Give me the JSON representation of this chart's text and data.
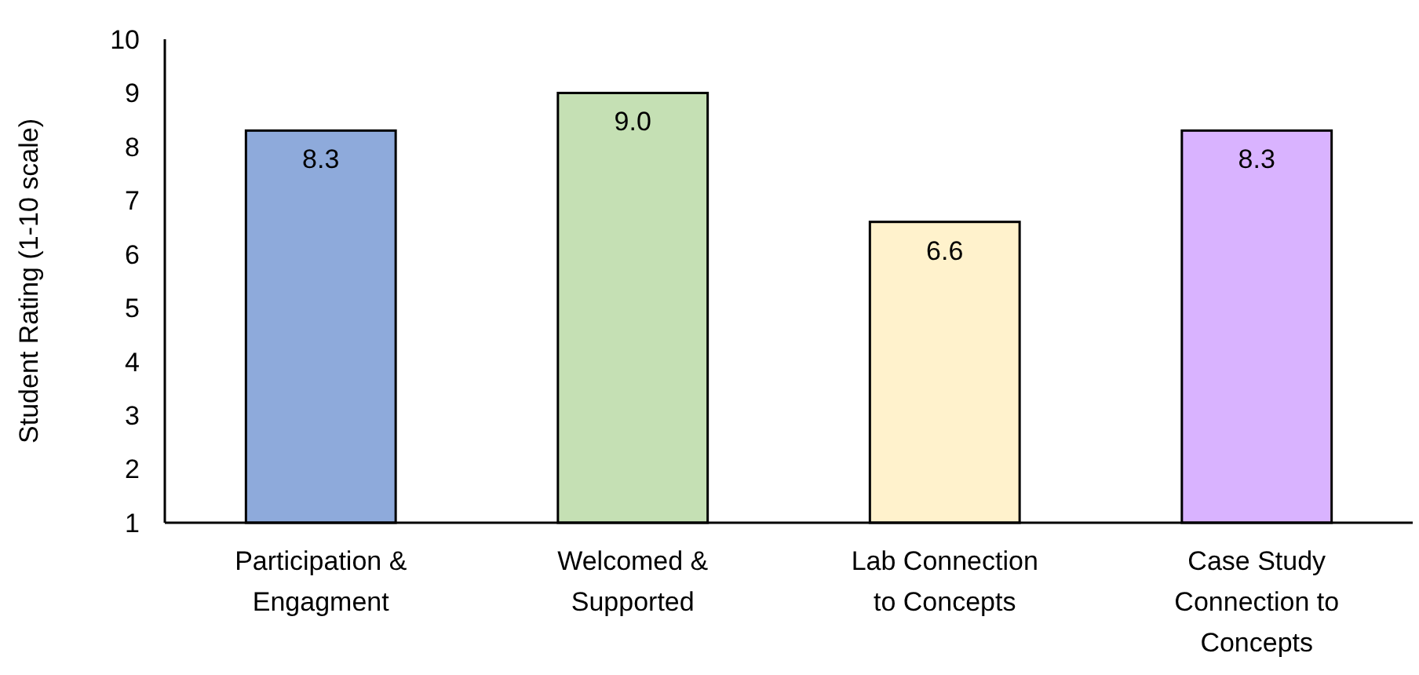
{
  "chart_data": {
    "type": "bar",
    "ylabel": "Student Rating (1-10 scale)",
    "categories": [
      "Participation & Engagment",
      "Welcomed & Supported",
      "Lab Connection to Concepts",
      "Case Study Connection to Concepts"
    ],
    "values": [
      8.3,
      9.0,
      6.6,
      8.3
    ],
    "colors": [
      "#8eaadb",
      "#c5e0b4",
      "#fff2cc",
      "#d9b3ff"
    ],
    "ylim": [
      1,
      10
    ],
    "yticks": [
      1,
      2,
      3,
      4,
      5,
      6,
      7,
      8,
      9,
      10
    ],
    "value_labels": [
      "8.3",
      "9.0",
      "6.6",
      "8.3"
    ],
    "grid": false
  }
}
